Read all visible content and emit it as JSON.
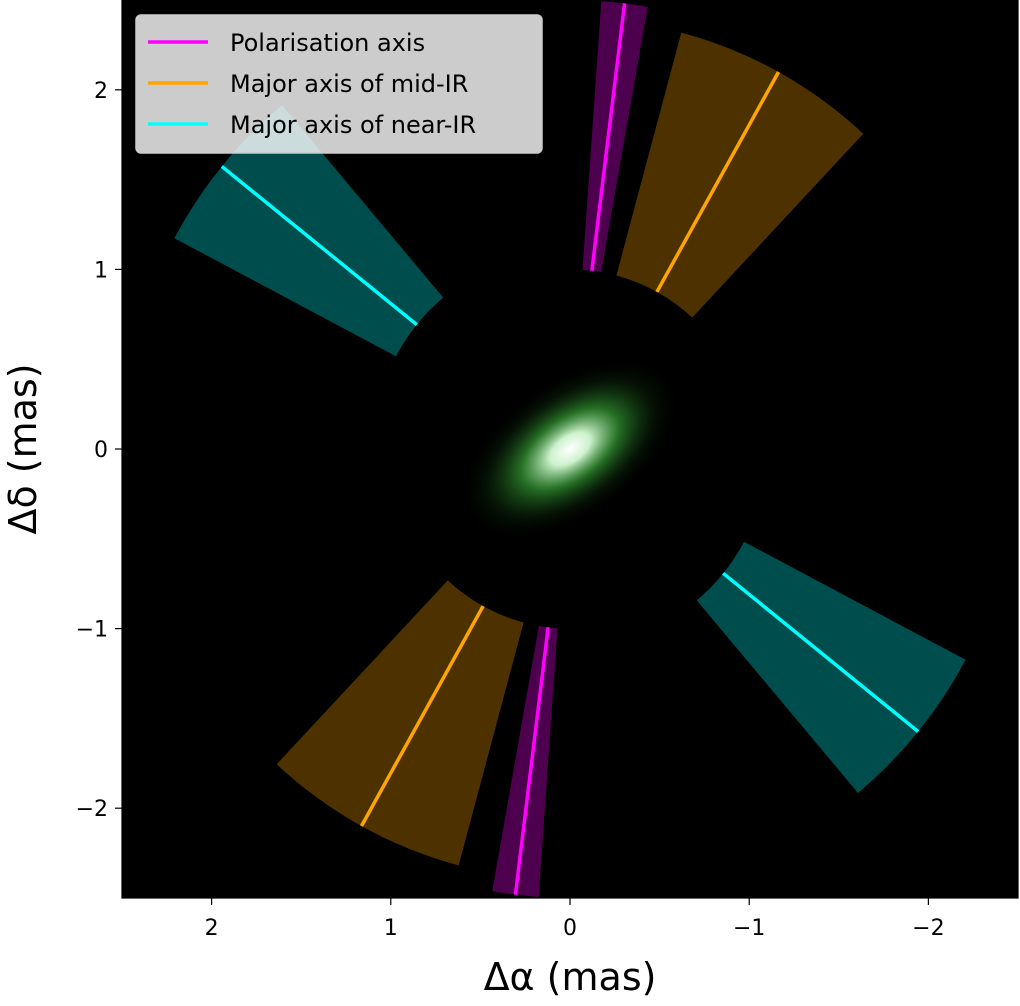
{
  "chart_data": {
    "type": "scatter",
    "xlabel": "Δα (mas)",
    "ylabel": "Δδ (mas)",
    "xlim": [
      2.5,
      -2.5
    ],
    "ylim": [
      -2.5,
      2.5
    ],
    "x_ticks": [
      2,
      1,
      0,
      -1,
      -2
    ],
    "x_tick_labels": [
      "2",
      "1",
      "0",
      "−1",
      "−2"
    ],
    "y_ticks": [
      2,
      1,
      0,
      -1,
      -2
    ],
    "y_tick_labels": [
      "2",
      "1",
      "0",
      "−1",
      "−2"
    ],
    "grid": false,
    "background": "#000000",
    "legend_position": "upper left",
    "legend": [
      {
        "label": "Polarisation axis",
        "color": "#ff00ff"
      },
      {
        "label": "Major axis of mid-IR",
        "color": "#ffa500"
      },
      {
        "label": "Major axis of near-IR",
        "color": "#00ffff"
      }
    ],
    "series": [
      {
        "name": "Polarisation axis",
        "color": "#ff00ff",
        "pa_deg": -7,
        "pa_uncertainty_deg": 3,
        "r_inner": 1,
        "r_outer": 2.5
      },
      {
        "name": "Major axis of mid-IR",
        "color": "#ffa500",
        "pa_deg": -29,
        "pa_uncertainty_deg": 14,
        "r_inner": 1,
        "r_outer": 2.4
      },
      {
        "name": "Major axis of near-IR",
        "color": "#00ffff",
        "pa_deg": 51,
        "pa_uncertainty_deg": 11,
        "r_inner": 1.1,
        "r_outer": 2.5
      }
    ],
    "image": {
      "type": "elliptical gaussian",
      "colors": [
        "#ffffff",
        "#3cb43c"
      ],
      "major_axis_pa_deg": -55,
      "sigma_major": 0.22,
      "sigma_minor": 0.12
    }
  }
}
